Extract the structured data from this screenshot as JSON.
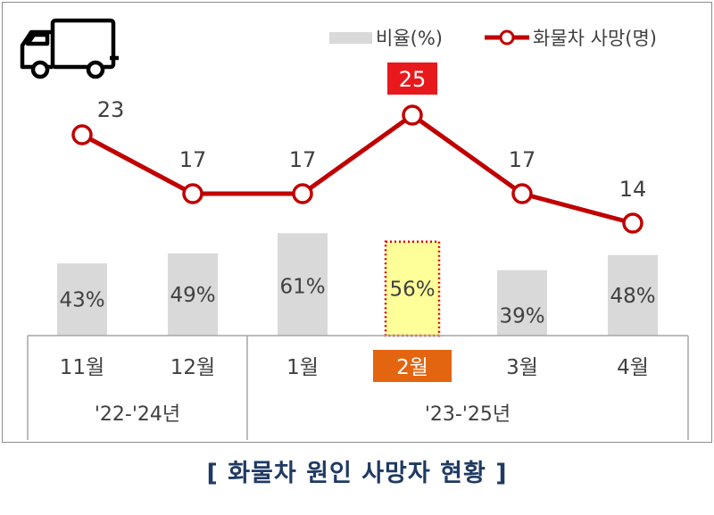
{
  "chart_data": {
    "type": "bar",
    "categories": [
      "11월",
      "12월",
      "1월",
      "2월",
      "3월",
      "4월"
    ],
    "groups": [
      {
        "label": "'22-'24년",
        "categories": [
          "11월",
          "12월"
        ]
      },
      {
        "label": "'23-'25년",
        "categories": [
          "1월",
          "2월",
          "3월",
          "4월"
        ]
      }
    ],
    "series": [
      {
        "name": "비율(%)",
        "type": "bar",
        "values": [
          43,
          49,
          61,
          56,
          39,
          48
        ],
        "labels": [
          "43%",
          "49%",
          "61%",
          "56%",
          "39%",
          "48%"
        ]
      },
      {
        "name": "화물차 사망(명)",
        "type": "line",
        "values": [
          23,
          17,
          17,
          25,
          17,
          14
        ],
        "labels": [
          "23",
          "17",
          "17",
          "25",
          "17",
          "14"
        ]
      }
    ],
    "highlight_category": "2월",
    "colors": {
      "bar": "#d9d9d9",
      "bar_highlight": "#ffff99",
      "highlight_border": "#e00000",
      "line": "#c00000",
      "marker_fill": "#ffffff",
      "highlight_label_bg": "#e8191c",
      "highlight_tick_bg": "#e3650f",
      "highlight_text": "#ffffff",
      "text": "#404040",
      "axis": "#a6a6a6"
    },
    "legend_position": "top-right",
    "icon": "truck-icon"
  },
  "caption": "[ 화물차 원인 사망자 현황 ]"
}
